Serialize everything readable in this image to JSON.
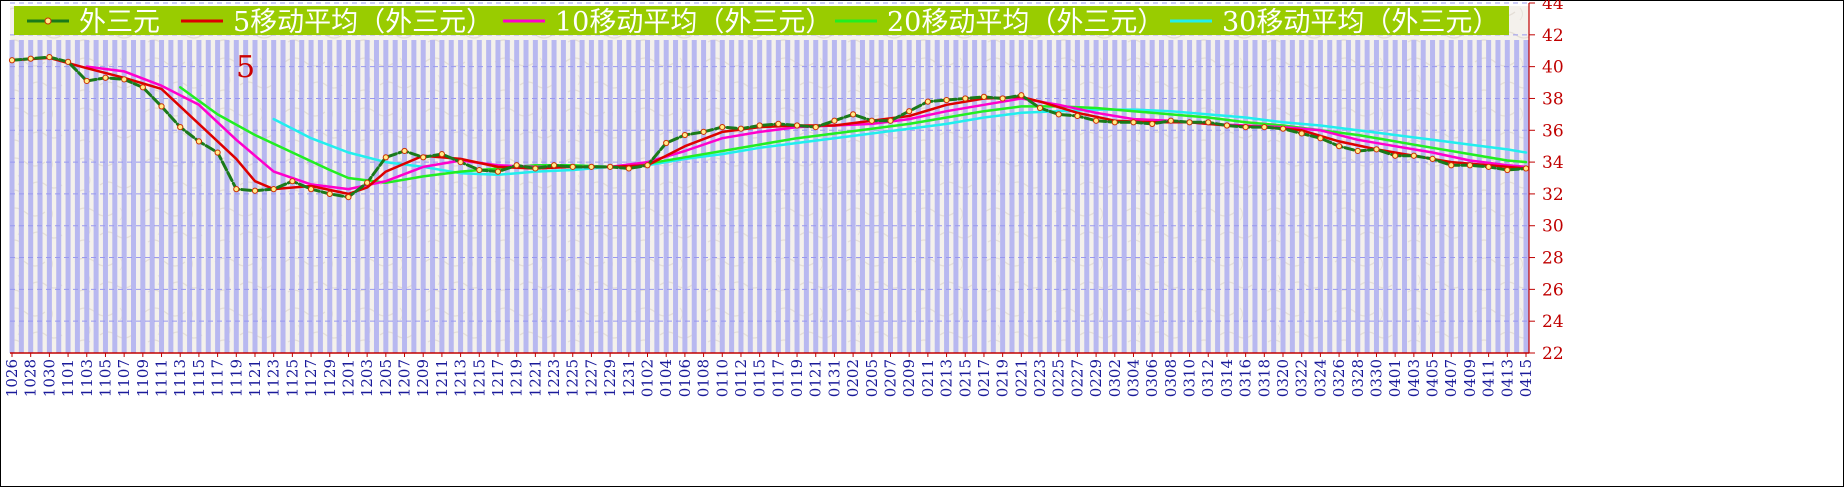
{
  "chart_data": {
    "type": "line",
    "title": "",
    "xlabel": "",
    "ylabel": "",
    "ylim": [
      22,
      44
    ],
    "y_ticks": [
      22,
      24,
      26,
      28,
      30,
      32,
      34,
      36,
      38,
      40,
      42,
      44
    ],
    "grid": true,
    "legend_position": "top",
    "annotation": "5",
    "colors": {
      "price": "#1a7a1a",
      "ma5": "#dd0000",
      "ma10": "#ff00cc",
      "ma20": "#22ee22",
      "ma30": "#22eeee",
      "legend_bg": "#99cc00",
      "axis_text": "#c00000",
      "date_text": "#1a1a9a",
      "bars": "#b8b8f0"
    },
    "x_tick_labels": [
      "1026",
      "1028",
      "1030",
      "1101",
      "1103",
      "1105",
      "1107",
      "1109",
      "1111",
      "1113",
      "1115",
      "1117",
      "1119",
      "1121",
      "1123",
      "1125",
      "1127",
      "1129",
      "1201",
      "1203",
      "1205",
      "1207",
      "1209",
      "1211",
      "1213",
      "1215",
      "1217",
      "1219",
      "1221",
      "1223",
      "1225",
      "1227",
      "1229",
      "1231",
      "0102",
      "0104",
      "0106",
      "0108",
      "0110",
      "0112",
      "0115",
      "0117",
      "0119",
      "0121",
      "0131",
      "0202",
      "0205",
      "0207",
      "0209",
      "0211",
      "0213",
      "0215",
      "0217",
      "0219",
      "0221",
      "0223",
      "0225",
      "0227",
      "0229",
      "0302",
      "0304",
      "0306",
      "0308",
      "0310",
      "0312",
      "0314",
      "0316",
      "0318",
      "0320",
      "0322",
      "0324",
      "0326",
      "0328",
      "0330",
      "0401",
      "0403",
      "0405",
      "0407",
      "0409",
      "0411",
      "0413",
      "0415"
    ],
    "series": [
      {
        "name": "外三元",
        "key": "price",
        "points": [
          [
            0,
            40.4
          ],
          [
            1,
            40.5
          ],
          [
            2,
            40.6
          ],
          [
            3,
            40.3
          ],
          [
            4,
            39.1
          ],
          [
            5,
            39.3
          ],
          [
            6,
            39.2
          ],
          [
            7,
            38.7
          ],
          [
            8,
            37.5
          ],
          [
            9,
            36.2
          ],
          [
            10,
            35.3
          ],
          [
            11,
            34.6
          ],
          [
            12,
            32.3
          ],
          [
            13,
            32.2
          ],
          [
            14,
            32.3
          ],
          [
            15,
            32.8
          ],
          [
            16,
            32.3
          ],
          [
            17,
            32.0
          ],
          [
            18,
            31.8
          ],
          [
            19,
            32.7
          ],
          [
            20,
            34.3
          ],
          [
            21,
            34.7
          ],
          [
            22,
            34.3
          ],
          [
            23,
            34.5
          ],
          [
            24,
            34.0
          ],
          [
            25,
            33.5
          ],
          [
            26,
            33.4
          ],
          [
            27,
            33.8
          ],
          [
            28,
            33.6
          ],
          [
            29,
            33.8
          ],
          [
            30,
            33.7
          ],
          [
            31,
            33.7
          ],
          [
            32,
            33.7
          ],
          [
            33,
            33.6
          ],
          [
            34,
            33.8
          ],
          [
            35,
            35.2
          ],
          [
            36,
            35.7
          ],
          [
            37,
            35.9
          ],
          [
            38,
            36.2
          ],
          [
            39,
            36.1
          ],
          [
            40,
            36.3
          ],
          [
            41,
            36.4
          ],
          [
            42,
            36.3
          ],
          [
            43,
            36.2
          ],
          [
            44,
            36.6
          ],
          [
            45,
            37.0
          ],
          [
            46,
            36.6
          ],
          [
            47,
            36.6
          ],
          [
            48,
            37.2
          ],
          [
            49,
            37.8
          ],
          [
            50,
            37.9
          ],
          [
            51,
            38.0
          ],
          [
            52,
            38.1
          ],
          [
            53,
            38.0
          ],
          [
            54,
            38.2
          ],
          [
            55,
            37.4
          ],
          [
            56,
            37.0
          ],
          [
            57,
            36.9
          ],
          [
            58,
            36.6
          ],
          [
            59,
            36.5
          ],
          [
            60,
            36.5
          ],
          [
            61,
            36.4
          ],
          [
            62,
            36.6
          ],
          [
            63,
            36.5
          ],
          [
            64,
            36.5
          ],
          [
            65,
            36.3
          ],
          [
            66,
            36.2
          ],
          [
            67,
            36.2
          ],
          [
            68,
            36.1
          ],
          [
            69,
            35.8
          ],
          [
            70,
            35.5
          ],
          [
            71,
            35.0
          ],
          [
            72,
            34.7
          ],
          [
            73,
            34.8
          ],
          [
            74,
            34.4
          ],
          [
            75,
            34.4
          ],
          [
            76,
            34.2
          ],
          [
            77,
            33.8
          ],
          [
            78,
            33.8
          ],
          [
            79,
            33.7
          ],
          [
            80,
            33.5
          ],
          [
            81,
            33.6
          ]
        ]
      },
      {
        "name": "5移动平均（外三元）",
        "key": "ma5",
        "points": [
          [
            0,
            40.4
          ],
          [
            2,
            40.55
          ],
          [
            4,
            39.9
          ],
          [
            6,
            39.3
          ],
          [
            8,
            38.6
          ],
          [
            10,
            36.4
          ],
          [
            12,
            34.2
          ],
          [
            13,
            32.8
          ],
          [
            14,
            32.3
          ],
          [
            16,
            32.5
          ],
          [
            18,
            32.0
          ],
          [
            19,
            32.4
          ],
          [
            20,
            33.4
          ],
          [
            22,
            34.4
          ],
          [
            24,
            34.2
          ],
          [
            26,
            33.7
          ],
          [
            28,
            33.6
          ],
          [
            30,
            33.7
          ],
          [
            32,
            33.7
          ],
          [
            34,
            33.8
          ],
          [
            36,
            35.0
          ],
          [
            38,
            35.9
          ],
          [
            40,
            36.2
          ],
          [
            42,
            36.3
          ],
          [
            44,
            36.3
          ],
          [
            46,
            36.6
          ],
          [
            48,
            36.9
          ],
          [
            50,
            37.6
          ],
          [
            52,
            38.0
          ],
          [
            54,
            38.1
          ],
          [
            55,
            37.8
          ],
          [
            57,
            37.1
          ],
          [
            59,
            36.6
          ],
          [
            61,
            36.5
          ],
          [
            63,
            36.5
          ],
          [
            65,
            36.3
          ],
          [
            67,
            36.2
          ],
          [
            69,
            36.0
          ],
          [
            71,
            35.3
          ],
          [
            73,
            34.8
          ],
          [
            75,
            34.4
          ],
          [
            77,
            34.0
          ],
          [
            79,
            33.8
          ],
          [
            81,
            33.6
          ]
        ]
      },
      {
        "name": "10移动平均（外三元）",
        "key": "ma10",
        "points": [
          [
            4,
            40.0
          ],
          [
            6,
            39.7
          ],
          [
            8,
            38.8
          ],
          [
            10,
            37.6
          ],
          [
            12,
            35.4
          ],
          [
            14,
            33.4
          ],
          [
            16,
            32.6
          ],
          [
            18,
            32.3
          ],
          [
            20,
            32.8
          ],
          [
            22,
            33.7
          ],
          [
            24,
            34.1
          ],
          [
            26,
            33.8
          ],
          [
            28,
            33.7
          ],
          [
            30,
            33.7
          ],
          [
            32,
            33.7
          ],
          [
            34,
            34.0
          ],
          [
            36,
            34.7
          ],
          [
            38,
            35.5
          ],
          [
            40,
            35.9
          ],
          [
            42,
            36.2
          ],
          [
            44,
            36.3
          ],
          [
            46,
            36.4
          ],
          [
            48,
            36.7
          ],
          [
            50,
            37.2
          ],
          [
            52,
            37.6
          ],
          [
            54,
            38.0
          ],
          [
            56,
            37.6
          ],
          [
            58,
            37.1
          ],
          [
            60,
            36.7
          ],
          [
            62,
            36.6
          ],
          [
            64,
            36.4
          ],
          [
            66,
            36.3
          ],
          [
            68,
            36.2
          ],
          [
            70,
            36.0
          ],
          [
            72,
            35.4
          ],
          [
            74,
            35.0
          ],
          [
            76,
            34.6
          ],
          [
            78,
            34.1
          ],
          [
            80,
            33.8
          ],
          [
            81,
            33.7
          ]
        ]
      },
      {
        "name": "20移动平均（外三元）",
        "key": "ma20",
        "points": [
          [
            9,
            38.7
          ],
          [
            11,
            37.0
          ],
          [
            13,
            35.7
          ],
          [
            15,
            34.6
          ],
          [
            17,
            33.5
          ],
          [
            18,
            33.0
          ],
          [
            20,
            32.7
          ],
          [
            22,
            33.1
          ],
          [
            24,
            33.4
          ],
          [
            26,
            33.6
          ],
          [
            28,
            33.8
          ],
          [
            30,
            33.8
          ],
          [
            32,
            33.7
          ],
          [
            34,
            33.9
          ],
          [
            36,
            34.3
          ],
          [
            38,
            34.7
          ],
          [
            40,
            35.1
          ],
          [
            42,
            35.5
          ],
          [
            44,
            35.8
          ],
          [
            46,
            36.1
          ],
          [
            48,
            36.4
          ],
          [
            50,
            36.8
          ],
          [
            52,
            37.2
          ],
          [
            54,
            37.5
          ],
          [
            56,
            37.5
          ],
          [
            58,
            37.4
          ],
          [
            60,
            37.2
          ],
          [
            62,
            37.0
          ],
          [
            64,
            36.8
          ],
          [
            66,
            36.5
          ],
          [
            68,
            36.3
          ],
          [
            70,
            36.0
          ],
          [
            72,
            35.7
          ],
          [
            74,
            35.3
          ],
          [
            76,
            34.9
          ],
          [
            78,
            34.5
          ],
          [
            80,
            34.1
          ],
          [
            81,
            34.0
          ]
        ]
      },
      {
        "name": "30移动平均（外三元）",
        "key": "ma30",
        "points": [
          [
            14,
            36.7
          ],
          [
            16,
            35.5
          ],
          [
            18,
            34.6
          ],
          [
            20,
            34.0
          ],
          [
            22,
            33.7
          ],
          [
            24,
            33.3
          ],
          [
            26,
            33.2
          ],
          [
            28,
            33.4
          ],
          [
            30,
            33.5
          ],
          [
            32,
            33.7
          ],
          [
            34,
            33.8
          ],
          [
            36,
            34.2
          ],
          [
            38,
            34.5
          ],
          [
            40,
            34.9
          ],
          [
            42,
            35.2
          ],
          [
            44,
            35.5
          ],
          [
            46,
            35.8
          ],
          [
            48,
            36.1
          ],
          [
            50,
            36.4
          ],
          [
            52,
            36.8
          ],
          [
            54,
            37.1
          ],
          [
            56,
            37.2
          ],
          [
            58,
            37.3
          ],
          [
            60,
            37.3
          ],
          [
            62,
            37.2
          ],
          [
            64,
            37.0
          ],
          [
            66,
            36.8
          ],
          [
            68,
            36.5
          ],
          [
            70,
            36.3
          ],
          [
            72,
            36.0
          ],
          [
            74,
            35.7
          ],
          [
            76,
            35.4
          ],
          [
            78,
            35.1
          ],
          [
            80,
            34.8
          ],
          [
            81,
            34.6
          ]
        ]
      }
    ]
  }
}
